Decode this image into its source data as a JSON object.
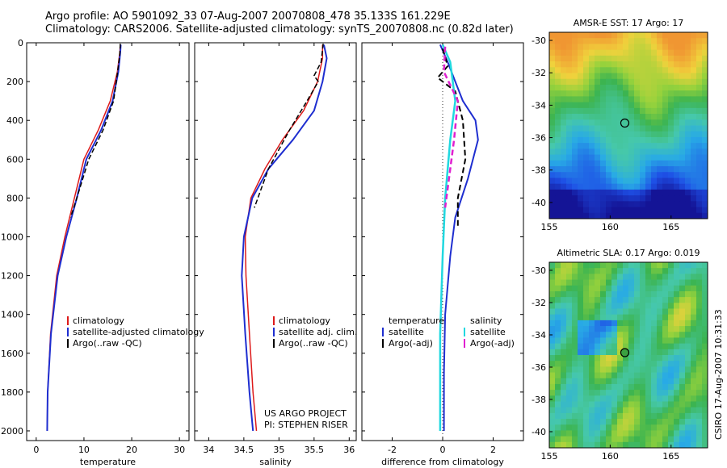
{
  "figure": {
    "title_line1": "Argo profile: AO 5901092_33 07-Aug-2007 20070808_478 35.133S 161.229E",
    "title_line2": "Climatology: CARS2006. Satellite-adjusted climatology: synTS_20070808.nc (0.82d later)",
    "project_line1": "US ARGO PROJECT",
    "project_line2": "PI: STEPHEN RISER",
    "credit": "CSIRO 17-Aug-2007 10:31:33"
  },
  "colors": {
    "climatology": "#dd1a1a",
    "satellite": "#1e2ed0",
    "argo": "#000000",
    "argo_adj": "#e020d0",
    "salinity_sat": "#20d8e0"
  },
  "chart_data": [
    {
      "type": "line",
      "xlabel": "temperature",
      "ylabel": "",
      "xlim": [
        -2,
        32
      ],
      "ylim": [
        2050,
        0
      ],
      "xticks": [
        "0",
        "10",
        "20",
        "30"
      ],
      "yticks": [
        "0",
        "200",
        "400",
        "600",
        "800",
        "1000",
        "1200",
        "1400",
        "1600",
        "1800",
        "2000"
      ],
      "legend": [
        "climatology",
        "satellite-adjusted climatology",
        "Argo(..raw -QC)"
      ],
      "series": [
        {
          "name": "climatology",
          "x": [
            17.6,
            17.5,
            17.0,
            15.5,
            13.0,
            10.0,
            8.0,
            6.0,
            4.3,
            3.0,
            2.4,
            2.3
          ],
          "y": [
            10,
            50,
            150,
            300,
            450,
            600,
            800,
            1000,
            1200,
            1500,
            1800,
            2000
          ]
        },
        {
          "name": "satellite-adjusted climatology",
          "x": [
            17.7,
            17.6,
            17.2,
            16.0,
            13.6,
            10.5,
            8.5,
            6.3,
            4.5,
            3.1,
            2.4,
            2.3
          ],
          "y": [
            10,
            50,
            150,
            300,
            450,
            600,
            800,
            1000,
            1200,
            1500,
            1800,
            2000
          ]
        },
        {
          "name": "Argo(..raw -QC)",
          "x": [
            17.6,
            17.5,
            17.0,
            16.2,
            14.0,
            11.0,
            8.5,
            7.2
          ],
          "y": [
            5,
            60,
            160,
            300,
            450,
            600,
            800,
            900
          ]
        }
      ]
    },
    {
      "type": "line",
      "xlabel": "salinity",
      "ylabel": "",
      "xlim": [
        33.8,
        36.1
      ],
      "ylim": [
        2050,
        0
      ],
      "xticks": [
        "34",
        "34.5",
        "35",
        "35.5",
        "36"
      ],
      "legend": [
        "climatology",
        "satellite adj. clim.",
        "Argo(..raw -QC)"
      ],
      "series": [
        {
          "name": "climatology",
          "x": [
            35.62,
            35.62,
            35.55,
            35.35,
            35.05,
            34.8,
            34.6,
            34.52,
            34.53,
            34.58,
            34.63,
            34.68
          ],
          "y": [
            10,
            80,
            200,
            350,
            500,
            650,
            800,
            1000,
            1200,
            1500,
            1800,
            2000
          ]
        },
        {
          "name": "satellite adj. clim.",
          "x": [
            35.64,
            35.68,
            35.62,
            35.5,
            35.2,
            34.85,
            34.62,
            34.5,
            34.47,
            34.52,
            34.58,
            34.63
          ],
          "y": [
            10,
            80,
            200,
            350,
            500,
            650,
            800,
            1000,
            1200,
            1500,
            1800,
            2000
          ]
        },
        {
          "name": "Argo(..raw -QC)",
          "x": [
            35.63,
            35.6,
            35.5,
            35.56,
            35.4,
            35.15,
            34.85,
            34.65
          ],
          "y": [
            5,
            100,
            170,
            200,
            300,
            450,
            650,
            850
          ]
        }
      ]
    },
    {
      "type": "line",
      "xlabel": "difference from climatology",
      "ylabel": "",
      "xlim": [
        -3.2,
        3.2
      ],
      "ylim": [
        2050,
        0
      ],
      "xticks": [
        "-2",
        "0",
        "2"
      ],
      "legend_left_title": "temperature",
      "legend_right_title": "salinity",
      "legend": [
        "satellite",
        "Argo(-adj)",
        "satellite",
        "Argo(-adj)"
      ],
      "series": [
        {
          "name": "satellite",
          "x": [
            -0.1,
            0.2,
            0.5,
            0.8,
            1.3,
            1.4,
            1.0,
            0.5,
            0.3,
            0.1,
            0.05,
            0.05
          ],
          "y": [
            10,
            100,
            200,
            300,
            400,
            500,
            700,
            900,
            1100,
            1400,
            1700,
            2000
          ]
        },
        {
          "name": "Argo(-adj)",
          "x": [
            0.0,
            0.2,
            -0.2,
            0.5,
            0.8,
            0.9,
            0.6,
            0.6
          ],
          "y": [
            30,
            120,
            180,
            250,
            400,
            600,
            800,
            950
          ]
        },
        {
          "name": "satellite",
          "x": [
            0.0,
            0.3,
            0.5,
            0.3,
            0.1,
            0.0,
            -0.1,
            -0.1
          ],
          "y": [
            10,
            100,
            300,
            500,
            800,
            1100,
            1500,
            2000
          ]
        },
        {
          "name": "Argo(-adj)",
          "x": [
            0.1,
            0.05,
            0.6,
            0.45,
            0.1
          ],
          "y": [
            20,
            150,
            300,
            500,
            850
          ]
        }
      ]
    },
    {
      "type": "heatmap",
      "title": "AMSR-E SST: 17 Argo: 17",
      "xticks": [
        "155",
        "160",
        "165"
      ],
      "yticks": [
        "-30",
        "-32",
        "-34",
        "-36",
        "-38",
        "-40"
      ],
      "xlim": [
        155,
        168
      ],
      "ylim": [
        -41,
        -29.5
      ],
      "marker": {
        "lon": 161.2,
        "lat": -35.1
      }
    },
    {
      "type": "heatmap",
      "title": "Altimetric SLA: 0.17 Argo: 0.019",
      "xticks": [
        "155",
        "160",
        "165"
      ],
      "yticks": [
        "-30",
        "-32",
        "-34",
        "-36",
        "-38",
        "-40"
      ],
      "xlim": [
        155,
        168
      ],
      "ylim": [
        -41,
        -29.5
      ],
      "marker": {
        "lon": 161.2,
        "lat": -35.1
      }
    }
  ]
}
